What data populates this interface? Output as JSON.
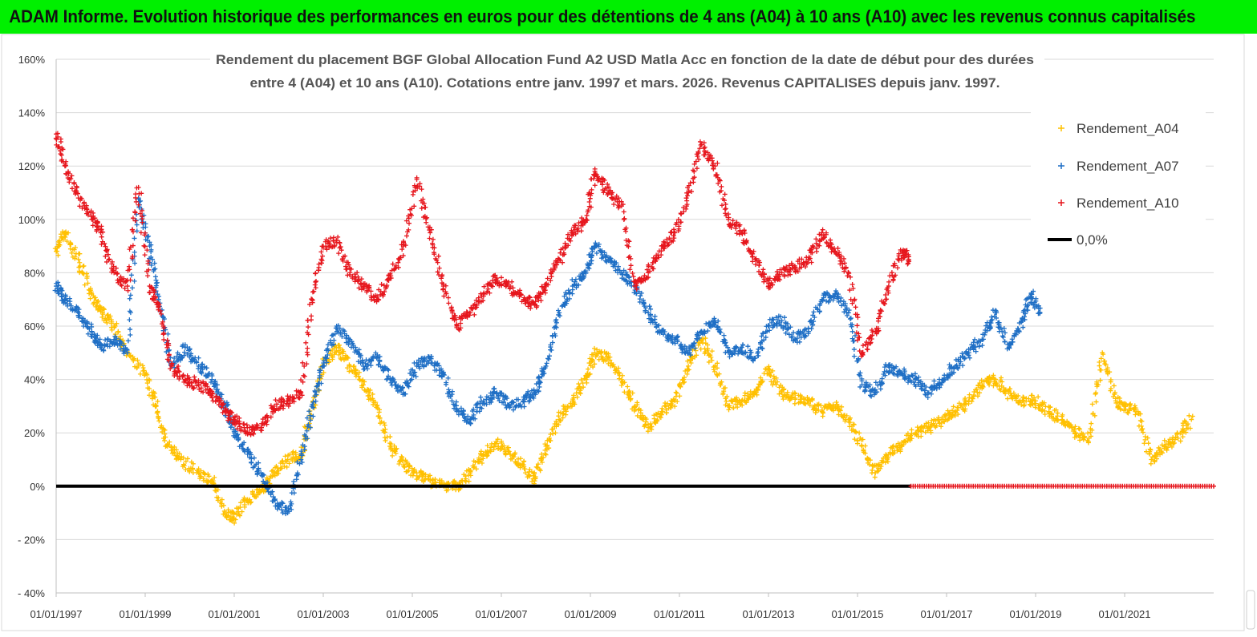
{
  "banner": {
    "text": "ADAM Informe. Evolution historique des performances en euros pour des détentions de 4 ans (A04) à 10 ans (A10) avec les revenus connus capitalisés"
  },
  "chart_data": {
    "type": "scatter",
    "title_lines": [
      "Rendement du placement BGF Global Allocation Fund A2 USD Matla Acc en fonction de la date de début pour des durées",
      "entre 4 (A04) et 10 ans (A10). Cotations entre janv. 1997 et mars. 2026. Revenus CAPITALISES depuis janv. 1997."
    ],
    "xlim": [
      1997.0,
      2023.0
    ],
    "ylim": [
      -40,
      160
    ],
    "y_ticks": [
      -40,
      -20,
      0,
      20,
      40,
      60,
      80,
      100,
      120,
      140,
      160
    ],
    "y_tick_labels": [
      "- 40%",
      "- 20%",
      "0%",
      "20%",
      "40%",
      "60%",
      "80%",
      "100%",
      "120%",
      "140%",
      "160%"
    ],
    "x_ticks": [
      1997,
      1999,
      2001,
      2003,
      2005,
      2007,
      2009,
      2011,
      2013,
      2015,
      2017,
      2019,
      2021
    ],
    "x_tick_labels": [
      "01/01/1997",
      "01/01/1999",
      "01/01/2001",
      "01/01/2003",
      "01/01/2005",
      "01/01/2007",
      "01/01/2009",
      "01/01/2011",
      "01/01/2013",
      "01/01/2015",
      "01/01/2017",
      "01/01/2019",
      "01/01/2021"
    ],
    "series": [
      {
        "name": "Rendement_A04",
        "color": "#ffc000",
        "x": [
          1997.0,
          1997.2,
          1997.5,
          1997.8,
          1998.0,
          1998.3,
          1998.6,
          1999.0,
          1999.25,
          1999.5,
          1999.8,
          2000.2,
          2000.5,
          2000.8,
          2001.0,
          2001.3,
          2001.6,
          2001.9,
          2002.2,
          2002.5,
          2002.75,
          2003.0,
          2003.3,
          2003.6,
          2003.9,
          2004.2,
          2004.5,
          2004.8,
          2005.1,
          2005.4,
          2005.7,
          2006.0,
          2006.3,
          2006.6,
          2006.9,
          2007.2,
          2007.5,
          2007.75,
          2008.0,
          2008.3,
          2008.6,
          2008.9,
          2009.1,
          2009.4,
          2009.7,
          2010.0,
          2010.3,
          2010.6,
          2010.9,
          2011.2,
          2011.5,
          2011.8,
          2012.1,
          2012.4,
          2012.7,
          2013.0,
          2013.3,
          2013.6,
          2013.9,
          2014.2,
          2014.5,
          2014.8,
          2015.1,
          2015.4,
          2015.7,
          2016.0,
          2016.3,
          2016.6,
          2016.9,
          2017.2,
          2017.5,
          2017.8,
          2018.1,
          2018.4,
          2018.7,
          2019.0,
          2019.3,
          2019.6,
          2019.9,
          2020.2,
          2020.5,
          2020.8,
          2021.0,
          2021.3,
          2021.6,
          2021.9,
          2022.2,
          2022.5
        ],
        "y": [
          88,
          95,
          85,
          72,
          66,
          60,
          50,
          42,
          30,
          15,
          10,
          5,
          2,
          -10,
          -12,
          -5,
          -2,
          5,
          10,
          12,
          30,
          45,
          52,
          45,
          38,
          30,
          15,
          8,
          5,
          2,
          0,
          0,
          5,
          12,
          16,
          12,
          8,
          2,
          15,
          25,
          32,
          40,
          50,
          48,
          40,
          30,
          22,
          28,
          32,
          45,
          55,
          45,
          30,
          32,
          35,
          44,
          35,
          33,
          32,
          28,
          30,
          25,
          15,
          5,
          12,
          15,
          20,
          22,
          25,
          28,
          32,
          38,
          40,
          35,
          32,
          32,
          28,
          25,
          20,
          18,
          50,
          32,
          30,
          28,
          10,
          15,
          18,
          25
        ]
      },
      {
        "name": "Rendement_A07",
        "color": "#1f6fc5",
        "x": [
          1997.0,
          1997.2,
          1997.5,
          1997.8,
          1998.0,
          1998.3,
          1998.6,
          1998.85,
          1999.1,
          1999.3,
          1999.6,
          1999.9,
          2000.2,
          2000.5,
          2000.8,
          2001.0,
          2001.3,
          2001.6,
          2001.9,
          2002.2,
          2002.5,
          2002.75,
          2003.0,
          2003.3,
          2003.6,
          2003.9,
          2004.2,
          2004.5,
          2004.8,
          2005.1,
          2005.4,
          2005.7,
          2006.0,
          2006.3,
          2006.6,
          2006.9,
          2007.2,
          2007.5,
          2007.75,
          2008.0,
          2008.3,
          2008.6,
          2008.9,
          2009.1,
          2009.4,
          2009.7,
          2010.0,
          2010.3,
          2010.6,
          2010.9,
          2011.2,
          2011.5,
          2011.8,
          2012.1,
          2012.4,
          2012.7,
          2013.0,
          2013.3,
          2013.6,
          2013.9,
          2014.2,
          2014.5,
          2014.8,
          2015.1,
          2015.4,
          2015.7,
          2016.0,
          2016.3,
          2016.6,
          2016.9,
          2017.2,
          2017.5,
          2017.8,
          2018.1,
          2018.4,
          2018.7,
          2018.9,
          2019.1
        ],
        "y": [
          75,
          70,
          65,
          58,
          52,
          55,
          50,
          108,
          90,
          70,
          45,
          52,
          45,
          40,
          30,
          20,
          12,
          5,
          -5,
          -10,
          10,
          30,
          45,
          60,
          55,
          45,
          48,
          40,
          35,
          45,
          48,
          42,
          28,
          25,
          32,
          35,
          30,
          32,
          35,
          45,
          65,
          75,
          80,
          90,
          85,
          80,
          75,
          65,
          58,
          55,
          50,
          58,
          62,
          50,
          52,
          48,
          60,
          62,
          55,
          58,
          70,
          72,
          65,
          38,
          35,
          45,
          42,
          40,
          35,
          40,
          45,
          50,
          55,
          65,
          52,
          62,
          72,
          65
        ]
      },
      {
        "name": "Rendement_A10",
        "color": "#e6161d",
        "x": [
          1997.0,
          1997.2,
          1997.5,
          1997.8,
          1998.0,
          1998.3,
          1998.6,
          1998.85,
          1999.1,
          1999.3,
          1999.6,
          1999.9,
          2000.2,
          2000.5,
          2000.8,
          2001.0,
          2001.3,
          2001.6,
          2001.9,
          2002.2,
          2002.5,
          2002.75,
          2003.0,
          2003.3,
          2003.6,
          2003.9,
          2004.2,
          2004.5,
          2004.8,
          2005.1,
          2005.4,
          2005.7,
          2006.0,
          2006.3,
          2006.6,
          2006.9,
          2007.2,
          2007.5,
          2007.75,
          2008.0,
          2008.3,
          2008.6,
          2008.9,
          2009.1,
          2009.4,
          2009.7,
          2010.0,
          2010.3,
          2010.6,
          2010.9,
          2011.2,
          2011.5,
          2011.8,
          2012.1,
          2012.4,
          2012.7,
          2013.0,
          2013.3,
          2013.6,
          2013.9,
          2014.2,
          2014.5,
          2014.8,
          2015.1,
          2015.4,
          2015.7,
          2016.0,
          2016.15
        ],
        "y": [
          132,
          120,
          108,
          100,
          95,
          80,
          75,
          112,
          75,
          68,
          45,
          40,
          38,
          35,
          28,
          25,
          20,
          22,
          30,
          32,
          35,
          70,
          90,
          92,
          80,
          75,
          70,
          78,
          90,
          115,
          95,
          75,
          60,
          65,
          72,
          78,
          75,
          70,
          68,
          75,
          85,
          95,
          100,
          118,
          110,
          105,
          75,
          80,
          90,
          95,
          110,
          128,
          120,
          100,
          95,
          85,
          75,
          80,
          82,
          85,
          95,
          88,
          80,
          50,
          58,
          75,
          88,
          85
        ]
      },
      {
        "name": "0,0%",
        "color": "#000000",
        "x": [
          1997.0,
          2016.2
        ],
        "y": [
          0,
          0
        ]
      }
    ],
    "zero_dots": {
      "name": "Rendement_A10",
      "color": "#e6161d",
      "x_start": 2016.2,
      "x_end": 2023.0,
      "y": 0
    },
    "legend": {
      "position": "right",
      "items": [
        "Rendement_A04",
        "Rendement_A07",
        "Rendement_A10",
        "0,0%"
      ]
    }
  }
}
